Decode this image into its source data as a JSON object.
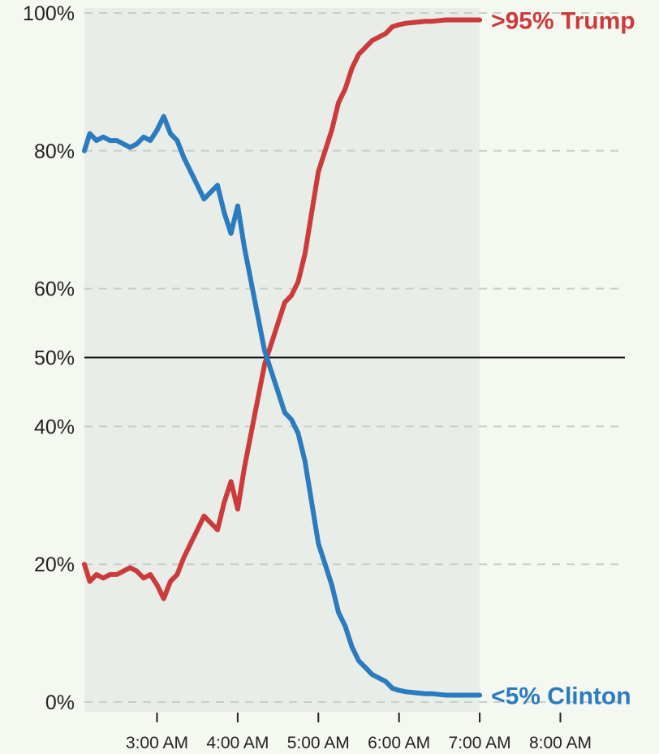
{
  "chart_data": {
    "type": "line",
    "title": "",
    "xlabel": "",
    "ylabel": "",
    "x_ticks": [
      "3:00 AM",
      "4:00 AM",
      "5:00 AM",
      "6:00 AM",
      "7:00 AM",
      "8:00 AM"
    ],
    "y_ticks": [
      "0%",
      "20%",
      "40%",
      "50%",
      "60%",
      "80%",
      "100%"
    ],
    "xlim": [
      "2:06 AM",
      "8:48 AM"
    ],
    "ylim": [
      0,
      100
    ],
    "grid": "dashed horizontal gridlines; solid line at 50%",
    "highlight_band": {
      "from": "2:06 AM",
      "to": "7:00 AM"
    },
    "series": [
      {
        "name": "Trump",
        "end_label": ">95% Trump",
        "color": "#cc3b3b",
        "x": [
          "2:06 AM",
          "2:10 AM",
          "2:15 AM",
          "2:20 AM",
          "2:25 AM",
          "2:30 AM",
          "2:35 AM",
          "2:40 AM",
          "2:45 AM",
          "2:50 AM",
          "2:55 AM",
          "3:00 AM",
          "3:05 AM",
          "3:10 AM",
          "3:15 AM",
          "3:20 AM",
          "3:25 AM",
          "3:30 AM",
          "3:35 AM",
          "3:40 AM",
          "3:45 AM",
          "3:50 AM",
          "3:55 AM",
          "4:00 AM",
          "4:05 AM",
          "4:10 AM",
          "4:15 AM",
          "4:20 AM",
          "4:25 AM",
          "4:30 AM",
          "4:35 AM",
          "4:40 AM",
          "4:45 AM",
          "4:50 AM",
          "4:55 AM",
          "5:00 AM",
          "5:05 AM",
          "5:10 AM",
          "5:15 AM",
          "5:20 AM",
          "5:25 AM",
          "5:30 AM",
          "5:35 AM",
          "5:40 AM",
          "5:45 AM",
          "5:50 AM",
          "5:55 AM",
          "6:00 AM",
          "6:05 AM",
          "6:10 AM",
          "6:15 AM",
          "6:20 AM",
          "6:25 AM",
          "6:30 AM",
          "6:35 AM",
          "6:40 AM",
          "6:45 AM",
          "6:50 AM",
          "6:55 AM",
          "7:00 AM"
        ],
        "values": [
          20,
          17.5,
          18.5,
          18,
          18.5,
          18.5,
          19,
          19.5,
          19,
          18,
          18.5,
          17,
          15,
          17.5,
          18.5,
          21,
          23,
          25,
          27,
          26,
          25,
          29,
          32,
          28,
          34,
          39,
          44,
          49,
          52,
          55,
          58,
          59,
          61,
          65,
          71,
          77,
          80,
          83,
          87,
          89,
          92,
          94,
          95,
          96,
          96.5,
          97,
          98,
          98.3,
          98.5,
          98.6,
          98.7,
          98.8,
          98.8,
          98.9,
          99,
          99,
          99,
          99,
          99,
          99
        ]
      },
      {
        "name": "Clinton",
        "end_label": "<5% Clinton",
        "color": "#2a7bbf",
        "x": [
          "2:06 AM",
          "2:10 AM",
          "2:15 AM",
          "2:20 AM",
          "2:25 AM",
          "2:30 AM",
          "2:35 AM",
          "2:40 AM",
          "2:45 AM",
          "2:50 AM",
          "2:55 AM",
          "3:00 AM",
          "3:05 AM",
          "3:10 AM",
          "3:15 AM",
          "3:20 AM",
          "3:25 AM",
          "3:30 AM",
          "3:35 AM",
          "3:40 AM",
          "3:45 AM",
          "3:50 AM",
          "3:55 AM",
          "4:00 AM",
          "4:05 AM",
          "4:10 AM",
          "4:15 AM",
          "4:20 AM",
          "4:25 AM",
          "4:30 AM",
          "4:35 AM",
          "4:40 AM",
          "4:45 AM",
          "4:50 AM",
          "4:55 AM",
          "5:00 AM",
          "5:05 AM",
          "5:10 AM",
          "5:15 AM",
          "5:20 AM",
          "5:25 AM",
          "5:30 AM",
          "5:35 AM",
          "5:40 AM",
          "5:45 AM",
          "5:50 AM",
          "5:55 AM",
          "6:00 AM",
          "6:05 AM",
          "6:10 AM",
          "6:15 AM",
          "6:20 AM",
          "6:25 AM",
          "6:30 AM",
          "6:35 AM",
          "6:40 AM",
          "6:45 AM",
          "6:50 AM",
          "6:55 AM",
          "7:00 AM"
        ],
        "values": [
          80,
          82.5,
          81.5,
          82,
          81.5,
          81.5,
          81,
          80.5,
          81,
          82,
          81.5,
          83,
          85,
          82.5,
          81.5,
          79,
          77,
          75,
          73,
          74,
          75,
          71,
          68,
          72,
          66,
          61,
          56,
          51,
          48,
          45,
          42,
          41,
          39,
          35,
          29,
          23,
          20,
          17,
          13,
          11,
          8,
          6,
          5,
          4,
          3.5,
          3,
          2,
          1.7,
          1.5,
          1.4,
          1.3,
          1.2,
          1.2,
          1.1,
          1,
          1,
          1,
          1,
          1,
          1
        ]
      }
    ]
  }
}
